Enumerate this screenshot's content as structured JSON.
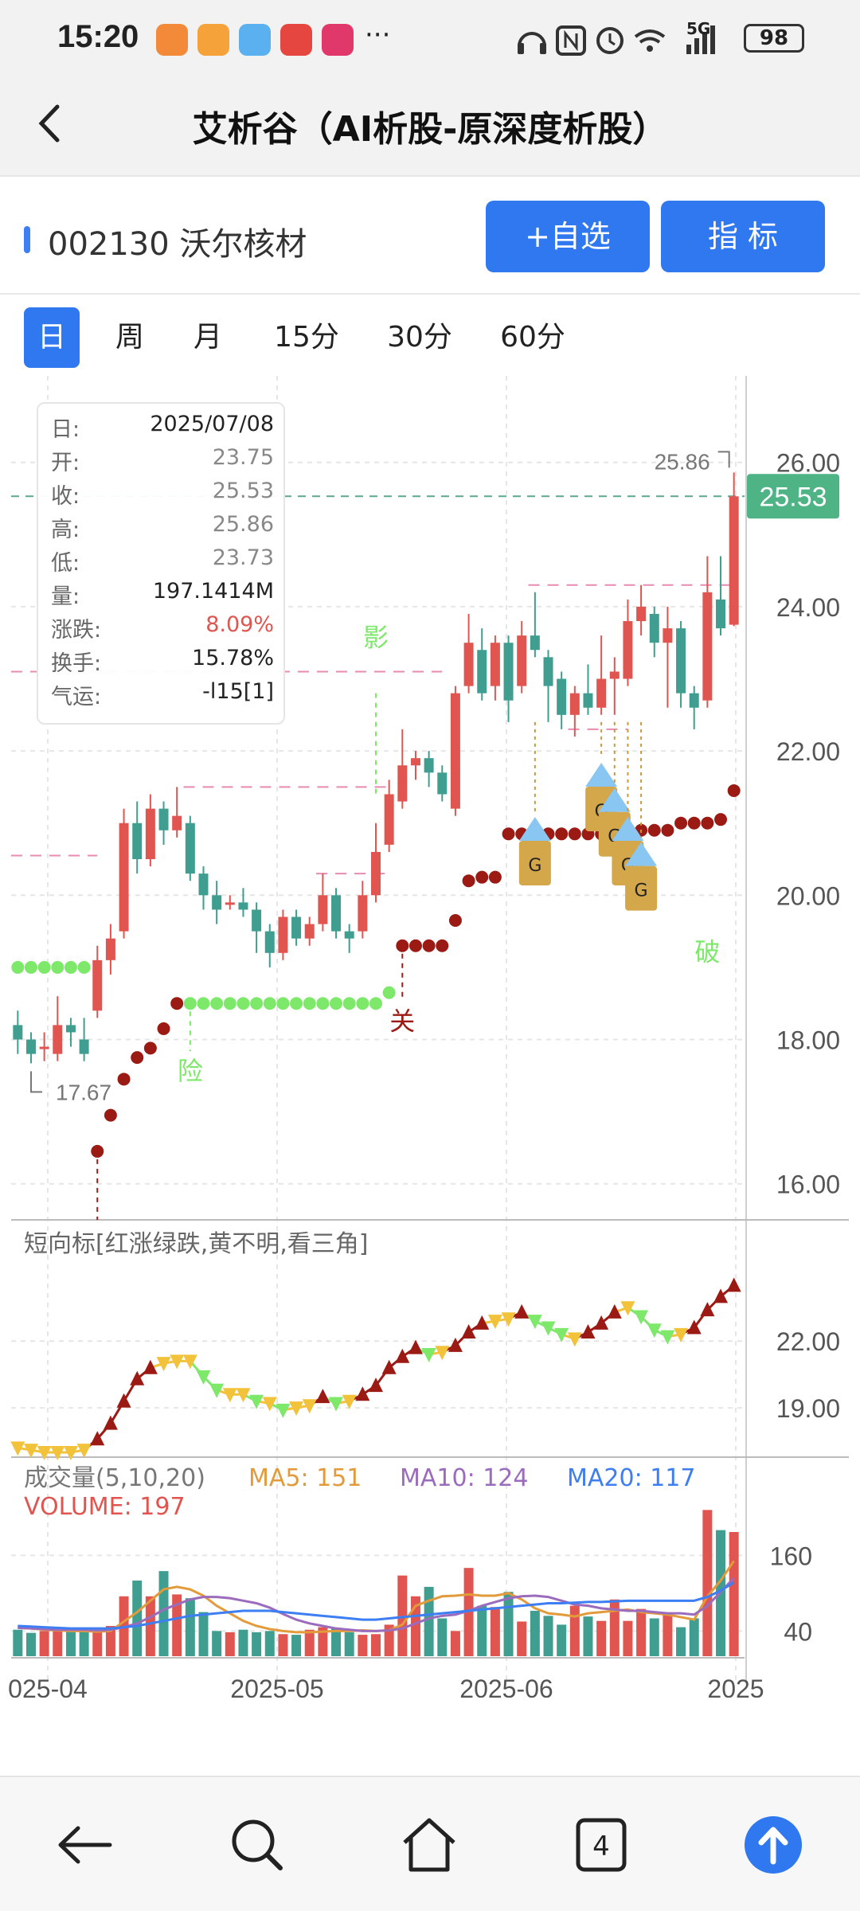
{
  "status_bar": {
    "time": "15:20",
    "battery": "98",
    "network": "5G",
    "more": "···"
  },
  "header": {
    "title": "艾析谷（AI析股-原深度析股）"
  },
  "stock": {
    "code_name": "002130 沃尔核材",
    "add_watch_label": "+自选",
    "indicator_label": "指  标"
  },
  "periods": [
    {
      "label": "日",
      "active": true
    },
    {
      "label": "周",
      "active": false
    },
    {
      "label": "月",
      "active": false
    },
    {
      "label": "15分",
      "active": false
    },
    {
      "label": "30分",
      "active": false
    },
    {
      "label": "60分",
      "active": false
    }
  ],
  "info": {
    "rows": [
      {
        "label": "日:",
        "value": "2025/07/08"
      },
      {
        "label": "开:",
        "value": "23.75"
      },
      {
        "label": "收:",
        "value": "25.53"
      },
      {
        "label": "高:",
        "value": "25.86"
      },
      {
        "label": "低:",
        "value": "23.73"
      },
      {
        "label": "量:",
        "value": "197.1414M"
      },
      {
        "label": "涨跌:",
        "value": "8.09%"
      },
      {
        "label": "换手:",
        "value": "15.78%"
      },
      {
        "label": "气运:",
        "value": "-l15[1]"
      }
    ]
  },
  "colors": {
    "up": "#e0554f",
    "down": "#3f9e8f",
    "accent": "#2f78f0",
    "yellow": "#f2c23a",
    "green_dot": "#7de86a",
    "dark_red": "#9b1b14"
  },
  "chart_data": [
    {
      "type": "candlestick",
      "x_ticks": [
        "025-04",
        "2025-05",
        "2025-06",
        "2025"
      ],
      "y_ticks": [
        26.0,
        24.0,
        22.0,
        20.0,
        18.0,
        16.0
      ],
      "ylim": [
        15.5,
        27.2
      ],
      "current_price_label": "25.53",
      "high_marker": "25.86",
      "low_marker": "17.67",
      "annotations": [
        "影",
        "险",
        "关",
        "破",
        "G"
      ],
      "candles": [
        [
          18.2,
          18.0,
          18.4,
          17.8
        ],
        [
          18.0,
          17.8,
          18.1,
          17.67
        ],
        [
          17.9,
          17.9,
          18.1,
          17.7
        ],
        [
          17.8,
          18.2,
          18.6,
          17.7
        ],
        [
          18.2,
          18.1,
          18.3,
          17.9
        ],
        [
          18.0,
          17.8,
          18.3,
          17.7
        ],
        [
          18.4,
          19.1,
          19.3,
          18.3
        ],
        [
          19.1,
          19.4,
          19.6,
          18.9
        ],
        [
          19.5,
          21.0,
          21.2,
          19.4
        ],
        [
          21.0,
          20.5,
          21.3,
          20.3
        ],
        [
          20.5,
          21.2,
          21.4,
          20.4
        ],
        [
          21.2,
          20.9,
          21.3,
          20.7
        ],
        [
          20.9,
          21.1,
          21.5,
          20.8
        ],
        [
          21.0,
          20.3,
          21.1,
          20.2
        ],
        [
          20.3,
          20.0,
          20.4,
          19.8
        ],
        [
          20.0,
          19.8,
          20.2,
          19.6
        ],
        [
          19.9,
          19.9,
          20.0,
          19.8
        ],
        [
          19.9,
          19.8,
          20.1,
          19.7
        ],
        [
          19.8,
          19.5,
          19.9,
          19.2
        ],
        [
          19.5,
          19.2,
          19.6,
          19.0
        ],
        [
          19.2,
          19.7,
          19.8,
          19.1
        ],
        [
          19.7,
          19.4,
          19.8,
          19.3
        ],
        [
          19.4,
          19.6,
          19.7,
          19.3
        ],
        [
          19.6,
          20.0,
          20.3,
          19.5
        ],
        [
          20.0,
          19.5,
          20.1,
          19.4
        ],
        [
          19.5,
          19.4,
          19.6,
          19.2
        ],
        [
          19.5,
          20.0,
          20.2,
          19.4
        ],
        [
          20.0,
          20.6,
          21.0,
          19.9
        ],
        [
          20.7,
          21.4,
          21.6,
          20.6
        ],
        [
          21.3,
          21.8,
          22.3,
          21.2
        ],
        [
          21.8,
          21.9,
          22.0,
          21.6
        ],
        [
          21.9,
          21.7,
          22.0,
          21.5
        ],
        [
          21.7,
          21.4,
          21.8,
          21.3
        ],
        [
          21.2,
          22.8,
          22.9,
          21.1
        ],
        [
          22.9,
          23.5,
          23.9,
          22.8
        ],
        [
          23.4,
          22.8,
          23.7,
          22.7
        ],
        [
          22.9,
          23.5,
          23.6,
          22.7
        ],
        [
          23.5,
          22.7,
          23.6,
          22.4
        ],
        [
          22.9,
          23.6,
          23.8,
          22.8
        ],
        [
          23.6,
          23.4,
          24.2,
          23.3
        ],
        [
          23.3,
          22.9,
          23.4,
          22.4
        ],
        [
          23.0,
          22.5,
          23.1,
          22.3
        ],
        [
          22.5,
          22.8,
          22.9,
          22.2
        ],
        [
          22.8,
          22.6,
          23.2,
          22.5
        ],
        [
          22.6,
          23.0,
          23.6,
          22.5
        ],
        [
          23.0,
          23.1,
          23.3,
          22.5
        ],
        [
          23.0,
          23.8,
          24.1,
          22.9
        ],
        [
          23.8,
          24.0,
          24.3,
          23.6
        ],
        [
          23.9,
          23.5,
          24.0,
          23.3
        ],
        [
          23.5,
          23.7,
          24.0,
          22.6
        ],
        [
          23.7,
          22.8,
          23.8,
          22.6
        ],
        [
          22.8,
          22.6,
          22.9,
          22.3
        ],
        [
          22.7,
          24.2,
          24.7,
          22.6
        ],
        [
          24.1,
          23.7,
          24.7,
          23.6
        ],
        [
          23.75,
          25.53,
          25.86,
          23.73
        ]
      ]
    },
    {
      "type": "line",
      "title": "短向标[红涨绿跌,黄不明,看三角]",
      "y_ticks": [
        22.0,
        19.0
      ],
      "values": [
        17.2,
        17.1,
        17.0,
        17.0,
        17.0,
        17.1,
        17.6,
        18.3,
        19.3,
        20.3,
        20.8,
        21.0,
        21.1,
        21.1,
        20.4,
        19.8,
        19.6,
        19.6,
        19.3,
        19.2,
        18.9,
        19.0,
        19.1,
        19.5,
        19.2,
        19.3,
        19.6,
        20.0,
        20.8,
        21.3,
        21.7,
        21.4,
        21.5,
        21.8,
        22.4,
        22.8,
        22.9,
        23.0,
        23.3,
        22.9,
        22.6,
        22.3,
        22.1,
        22.4,
        22.8,
        23.3,
        23.5,
        23.1,
        22.5,
        22.2,
        22.3,
        22.6,
        23.4,
        24.0,
        24.5
      ]
    },
    {
      "type": "bar",
      "title": "成交量(5,10,20)",
      "labels": {
        "ma5": "MA5: 151",
        "ma10": "MA10: 124",
        "ma20": "MA20: 117",
        "volume": "VOLUME: 197"
      },
      "y_ticks": [
        160,
        40
      ],
      "values": [
        42,
        37,
        40,
        42,
        40,
        39,
        38,
        48,
        95,
        120,
        95,
        135,
        98,
        92,
        70,
        40,
        38,
        42,
        38,
        40,
        35,
        34,
        42,
        46,
        44,
        38,
        34,
        35,
        50,
        128,
        95,
        110,
        60,
        40,
        140,
        80,
        78,
        102,
        55,
        72,
        64,
        50,
        80,
        63,
        56,
        90,
        56,
        75,
        60,
        68,
        46,
        60,
        232,
        200,
        197
      ],
      "ma5": [
        45,
        44,
        42,
        41,
        40,
        40,
        39,
        40,
        55,
        70,
        88,
        106,
        110,
        106,
        96,
        80,
        68,
        56,
        48,
        43,
        40,
        38,
        38,
        39,
        40,
        40,
        41,
        40,
        41,
        50,
        80,
        88,
        95,
        96,
        98,
        96,
        96,
        100,
        90,
        76,
        68,
        66,
        63,
        68,
        70,
        72,
        74,
        70,
        68,
        66,
        62,
        58,
        95,
        120,
        151
      ],
      "ma10": [
        45,
        44,
        43,
        42,
        42,
        42,
        41,
        42,
        46,
        52,
        62,
        74,
        82,
        90,
        94,
        94,
        92,
        88,
        84,
        77,
        67,
        58,
        52,
        48,
        44,
        42,
        40,
        40,
        41,
        44,
        52,
        60,
        64,
        66,
        72,
        80,
        86,
        92,
        95,
        96,
        94,
        88,
        82,
        80,
        76,
        74,
        72,
        72,
        70,
        68,
        68,
        66,
        80,
        102,
        124
      ],
      "ma20": [
        48,
        47,
        46,
        45,
        44,
        44,
        44,
        44,
        46,
        48,
        52,
        56,
        60,
        64,
        66,
        68,
        70,
        72,
        72,
        72,
        70,
        68,
        66,
        64,
        62,
        60,
        58,
        58,
        60,
        62,
        64,
        66,
        68,
        70,
        72,
        74,
        76,
        78,
        80,
        82,
        84,
        84,
        85,
        86,
        86,
        87,
        88,
        88,
        88,
        88,
        88,
        88,
        94,
        104,
        117
      ]
    }
  ]
}
